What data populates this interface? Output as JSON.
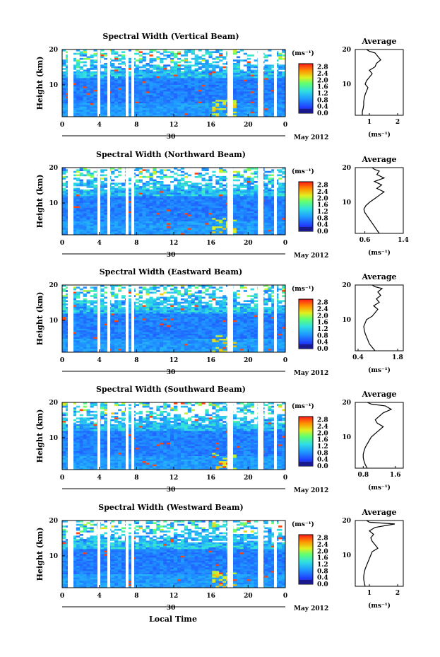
{
  "figure": {
    "xlabel": "Local Time",
    "date_label": "May 2012",
    "day_label": "30",
    "ylabel": "Height (km)",
    "unit": "(ms⁻¹)",
    "avg_title": "Average",
    "avg_xlabel": "(ms⁻¹)"
  },
  "chart_data": [
    {
      "type": "heatmap",
      "title": "Spectral Width (Vertical Beam)",
      "xlabel": "",
      "ylabel": "Height (km)",
      "xlim": [
        0,
        24
      ],
      "ylim": [
        1,
        20
      ],
      "x_ticks": [
        "0",
        "4",
        "8",
        "12",
        "16",
        "20",
        "0"
      ],
      "y_ticks": [
        "10",
        "20"
      ],
      "colorbar": {
        "min": 0.0,
        "max": 3.0,
        "ticks": [
          "0.0",
          "0.4",
          "0.8",
          "1.2",
          "1.6",
          "2.0",
          "2.4",
          "2.8"
        ]
      },
      "average_profile": {
        "type": "line",
        "title": "Average",
        "xlim": [
          0.5,
          2.2
        ],
        "x_ticks": [
          "1",
          "2"
        ],
        "y_ticks": [
          "10",
          "20"
        ],
        "x": [
          0.75,
          0.75,
          0.78,
          0.8,
          0.8,
          0.82,
          0.85,
          0.9,
          0.95,
          0.85,
          0.9,
          1.0,
          1.1,
          1.0,
          1.2,
          1.25,
          1.4,
          1.3,
          1.2,
          1.0,
          0.9
        ],
        "y": [
          1,
          2,
          3,
          4,
          5,
          6,
          7,
          8,
          9,
          10,
          11,
          12,
          13,
          14,
          15,
          16,
          17,
          18,
          19,
          19.5,
          20
        ]
      }
    },
    {
      "type": "heatmap",
      "title": "Spectral Width (Northward Beam)",
      "xlabel": "",
      "ylabel": "Height (km)",
      "xlim": [
        0,
        24
      ],
      "ylim": [
        1,
        20
      ],
      "x_ticks": [
        "0",
        "4",
        "8",
        "12",
        "16",
        "20",
        "0"
      ],
      "y_ticks": [
        "10",
        "20"
      ],
      "colorbar": {
        "min": 0.0,
        "max": 3.0,
        "ticks": [
          "0.0",
          "0.4",
          "0.8",
          "1.2",
          "1.6",
          "2.0",
          "2.4",
          "2.8"
        ]
      },
      "average_profile": {
        "type": "line",
        "title": "Average",
        "xlim": [
          0.4,
          1.4
        ],
        "x_ticks": [
          "0.6",
          "1.4"
        ],
        "y_ticks": [
          "10",
          "20"
        ],
        "x": [
          0.9,
          0.85,
          0.8,
          0.75,
          0.7,
          0.65,
          0.6,
          0.58,
          0.62,
          0.7,
          0.8,
          0.9,
          1.0,
          0.85,
          0.95,
          0.8,
          1.0,
          0.85,
          0.9,
          0.8,
          0.75
        ],
        "y": [
          1,
          2,
          3,
          4,
          5,
          6,
          7,
          8,
          9,
          10,
          11,
          12,
          13,
          14,
          15,
          16,
          17,
          18,
          19,
          19.5,
          20
        ]
      }
    },
    {
      "type": "heatmap",
      "title": "Spectral Width (Eastward Beam)",
      "xlabel": "",
      "ylabel": "Height (km)",
      "xlim": [
        0,
        24
      ],
      "ylim": [
        1,
        20
      ],
      "x_ticks": [
        "0",
        "4",
        "8",
        "12",
        "16",
        "20",
        "0"
      ],
      "y_ticks": [
        "10",
        "20"
      ],
      "colorbar": {
        "min": 0.0,
        "max": 3.0,
        "ticks": [
          "0.0",
          "0.4",
          "0.8",
          "1.2",
          "1.6",
          "2.0",
          "2.4",
          "2.8"
        ]
      },
      "average_profile": {
        "type": "line",
        "title": "Average",
        "xlim": [
          0.3,
          2.0
        ],
        "x_ticks": [
          "0.4",
          "1.8"
        ],
        "y_ticks": [
          "10",
          "20"
        ],
        "x": [
          1.0,
          0.9,
          0.8,
          0.75,
          0.7,
          0.65,
          0.62,
          0.6,
          0.65,
          0.7,
          0.9,
          1.0,
          1.1,
          0.95,
          1.15,
          1.05,
          1.2,
          1.1,
          1.25,
          1.0,
          0.9
        ],
        "y": [
          1,
          2,
          3,
          4,
          5,
          6,
          7,
          8,
          9,
          10,
          11,
          12,
          13,
          14,
          15,
          16,
          17,
          18,
          19,
          19.5,
          20
        ]
      }
    },
    {
      "type": "heatmap",
      "title": "Spectral Width (Southward Beam)",
      "xlabel": "",
      "ylabel": "Height (km)",
      "xlim": [
        0,
        24
      ],
      "ylim": [
        1,
        20
      ],
      "x_ticks": [
        "0",
        "4",
        "8",
        "12",
        "16",
        "20",
        "0"
      ],
      "y_ticks": [
        "10",
        "20"
      ],
      "colorbar": {
        "min": 0.0,
        "max": 3.0,
        "ticks": [
          "0.0",
          "0.4",
          "0.8",
          "1.2",
          "1.6",
          "2.0",
          "2.4",
          "2.8"
        ]
      },
      "average_profile": {
        "type": "line",
        "title": "Average",
        "xlim": [
          0.6,
          1.8
        ],
        "x_ticks": [
          "0.8",
          "1.6"
        ],
        "y_ticks": [
          "10",
          "20"
        ],
        "x": [
          0.9,
          0.85,
          0.82,
          0.8,
          0.8,
          0.82,
          0.85,
          0.9,
          0.95,
          1.0,
          1.1,
          1.2,
          1.3,
          1.15,
          1.1,
          1.2,
          1.3,
          1.5,
          1.35,
          1.0,
          0.9
        ],
        "y": [
          1,
          2,
          3,
          4,
          5,
          6,
          7,
          8,
          9,
          10,
          11,
          12,
          13,
          14,
          15,
          16,
          17,
          18,
          19,
          19.5,
          20
        ]
      }
    },
    {
      "type": "heatmap",
      "title": "Spectral Width (Westward Beam)",
      "xlabel": "Local Time",
      "ylabel": "Height (km)",
      "xlim": [
        0,
        24
      ],
      "ylim": [
        1,
        20
      ],
      "x_ticks": [
        "0",
        "4",
        "8",
        "12",
        "16",
        "20",
        "0"
      ],
      "y_ticks": [
        "10",
        "20"
      ],
      "colorbar": {
        "min": 0.0,
        "max": 3.0,
        "ticks": [
          "0.0",
          "0.4",
          "0.8",
          "1.2",
          "1.6",
          "2.0",
          "2.4",
          "2.8"
        ]
      },
      "average_profile": {
        "type": "line",
        "title": "Average",
        "xlim": [
          0.5,
          2.2
        ],
        "x_ticks": [
          "1",
          "2"
        ],
        "y_ticks": [
          "10",
          "20"
        ],
        "x": [
          0.85,
          0.82,
          0.8,
          0.8,
          0.82,
          0.85,
          0.9,
          0.95,
          1.0,
          1.05,
          1.1,
          1.3,
          1.2,
          1.1,
          1.05,
          1.15,
          1.0,
          1.2,
          1.9,
          1.0,
          0.9
        ],
        "y": [
          1,
          2,
          3,
          4,
          5,
          6,
          7,
          8,
          9,
          10,
          11,
          12,
          13,
          14,
          15,
          16,
          17,
          18,
          19,
          19.5,
          20
        ]
      }
    }
  ]
}
